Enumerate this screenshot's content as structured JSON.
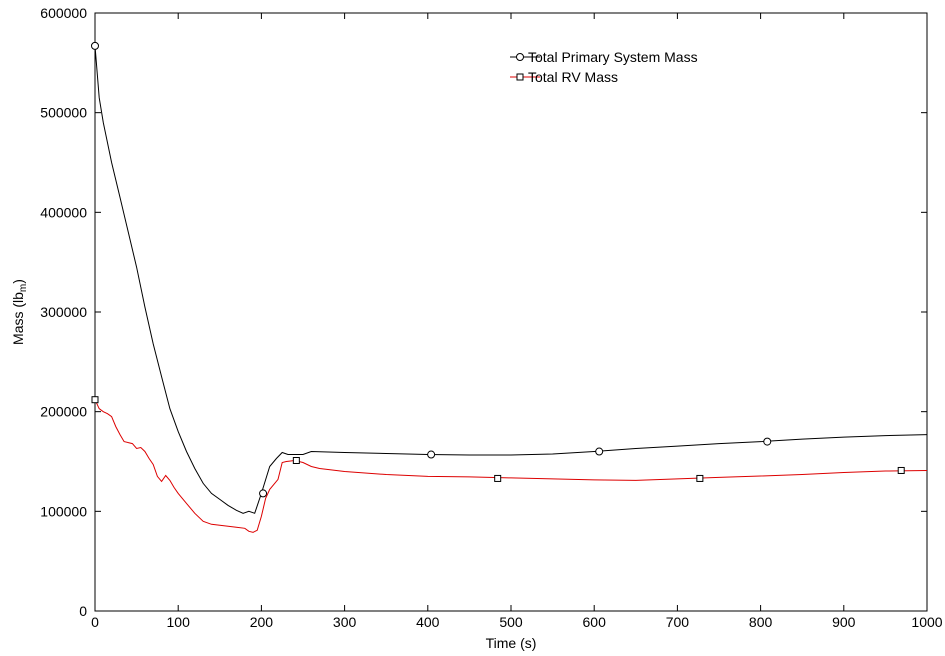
{
  "chart_data": {
    "type": "line",
    "xlabel": "Time (s)",
    "ylabel": {
      "prefix": "Mass (lb",
      "sub": "m",
      "suffix": ")"
    },
    "xlim": [
      0,
      1000
    ],
    "ylim": [
      0,
      600000
    ],
    "xticks": [
      0,
      100,
      200,
      300,
      400,
      500,
      600,
      700,
      800,
      900,
      1000
    ],
    "yticks": [
      0,
      100000,
      200000,
      300000,
      400000,
      500000,
      600000
    ],
    "xtick_labels": [
      "0",
      "100",
      "200",
      "300",
      "400",
      "500",
      "600",
      "700",
      "800",
      "900",
      "1000"
    ],
    "ytick_labels": [
      "0",
      "100000",
      "200000",
      "300000",
      "400000",
      "500000",
      "600000"
    ],
    "grid": false,
    "legend_position": "top-right",
    "series": [
      {
        "name": "Total Primary System Mass",
        "color": "#000000",
        "marker": "circle",
        "x": [
          0,
          5,
          10,
          20,
          30,
          40,
          50,
          60,
          70,
          80,
          90,
          100,
          110,
          120,
          130,
          140,
          150,
          160,
          170,
          178,
          185,
          192,
          200,
          210,
          218,
          225,
          232,
          240,
          250,
          260,
          280,
          300,
          350,
          400,
          450,
          500,
          550,
          600,
          650,
          700,
          750,
          800,
          850,
          900,
          950,
          1000
        ],
        "y": [
          567000,
          515000,
          490000,
          450000,
          415000,
          380000,
          345000,
          305000,
          268000,
          235000,
          203000,
          180000,
          160000,
          143000,
          128000,
          118000,
          112000,
          106000,
          101000,
          98000,
          100000,
          98000,
          118000,
          145000,
          153000,
          159000,
          157000,
          157000,
          157000,
          160000,
          159500,
          159000,
          158000,
          157000,
          156500,
          156500,
          157500,
          160000,
          163000,
          165500,
          168000,
          170000,
          172500,
          174500,
          176000,
          177000
        ],
        "marker_x": [
          0,
          202,
          404,
          606,
          808
        ],
        "marker_y": [
          567000,
          118000,
          157000,
          160000,
          170000
        ]
      },
      {
        "name": "Total RV Mass",
        "color": "#dd0000",
        "marker": "square",
        "x": [
          0,
          5,
          10,
          15,
          20,
          25,
          30,
          35,
          40,
          45,
          50,
          55,
          60,
          65,
          70,
          75,
          80,
          85,
          90,
          95,
          100,
          110,
          120,
          130,
          140,
          150,
          160,
          170,
          180,
          185,
          190,
          195,
          200,
          205,
          210,
          220,
          225,
          230,
          240,
          250,
          260,
          270,
          280,
          300,
          350,
          400,
          450,
          500,
          550,
          600,
          650,
          700,
          750,
          800,
          850,
          900,
          950,
          1000
        ],
        "y": [
          212000,
          203000,
          200000,
          198000,
          195000,
          185000,
          177000,
          170000,
          169000,
          168000,
          163000,
          164000,
          160000,
          153000,
          147000,
          135000,
          130000,
          136000,
          131000,
          124000,
          118000,
          108000,
          98000,
          90000,
          87000,
          86000,
          85000,
          84000,
          83000,
          80000,
          79000,
          81000,
          95000,
          113000,
          122000,
          132000,
          149000,
          150000,
          151000,
          149000,
          145000,
          143000,
          142000,
          140000,
          137000,
          135000,
          134500,
          133500,
          132500,
          131500,
          131000,
          132500,
          134000,
          135500,
          137000,
          139000,
          140500,
          141000
        ],
        "marker_x": [
          0,
          242,
          484,
          727,
          969
        ],
        "marker_y": [
          212000,
          151000,
          133000,
          133000,
          141000
        ]
      }
    ]
  }
}
